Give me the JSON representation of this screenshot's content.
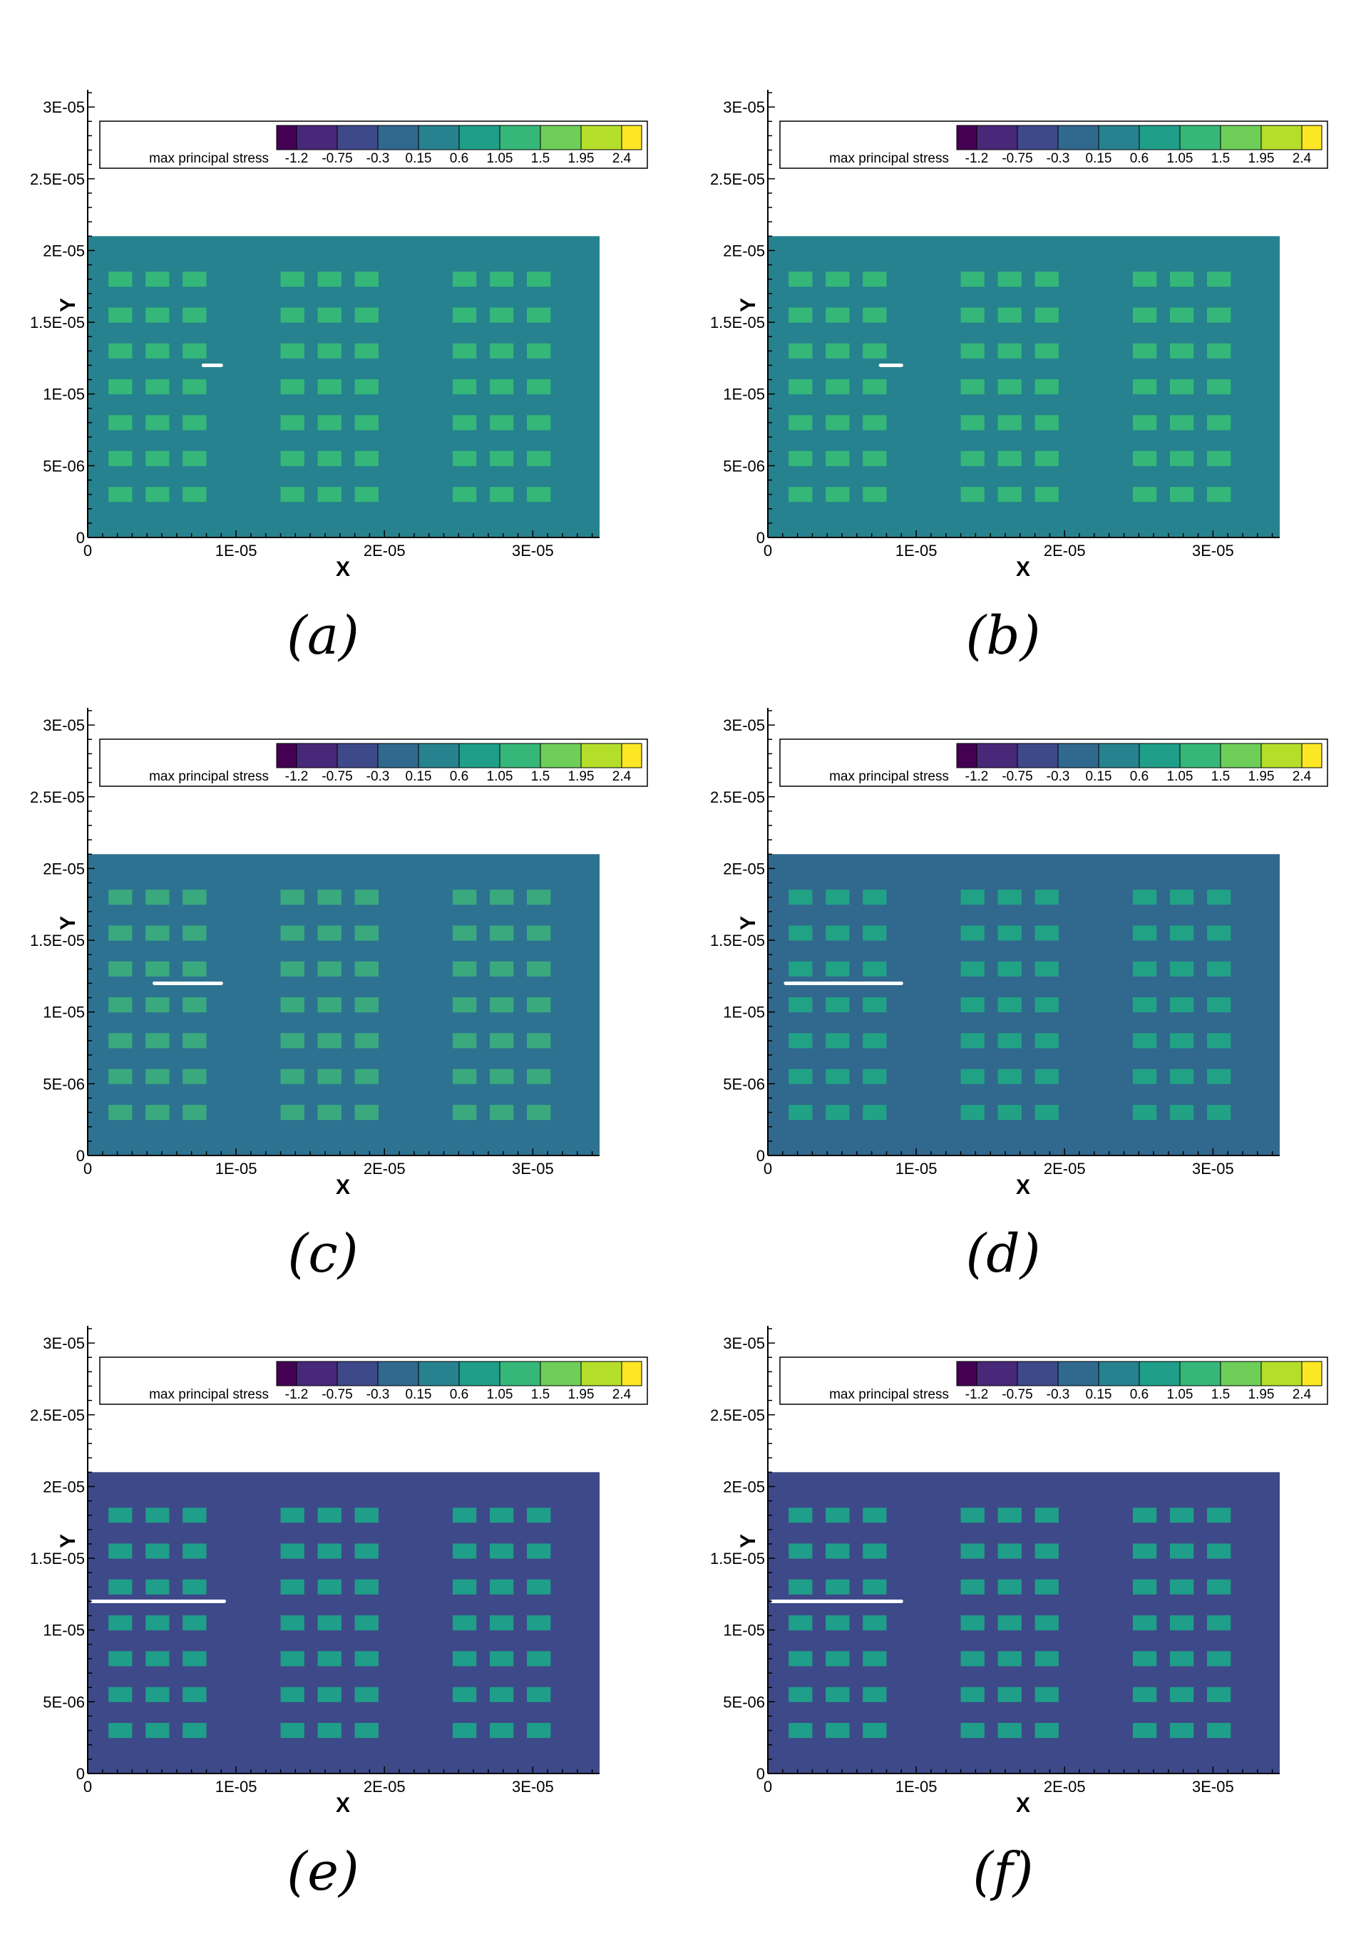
{
  "chart_data": [
    {
      "type": "heatmap",
      "caption": "(a)",
      "xlabel": "X",
      "ylabel": "Y",
      "xlim": [
        0,
        3.45e-05
      ],
      "ylim": [
        0,
        3.1e-05
      ],
      "x_ticks": [
        "0",
        "1E-05",
        "2E-05",
        "3E-05"
      ],
      "y_ticks": [
        "0",
        "5E-06",
        "1E-05",
        "1.5E-05",
        "2E-05",
        "2.5E-05",
        "3E-05"
      ],
      "domain_x": [
        0,
        3.45e-05
      ],
      "domain_y": [
        0,
        2.1e-05
      ],
      "legend_title": "max principal stress",
      "levels": [
        "-1.2",
        "-0.75",
        "-0.3",
        "0.15",
        "0.6",
        "1.05",
        "1.5",
        "1.95",
        "2.4"
      ],
      "crack": {
        "x_start": 7.8e-06,
        "x_end": 9e-06,
        "y": 1.2e-05
      }
    },
    {
      "type": "heatmap",
      "caption": "(b)",
      "xlabel": "X",
      "ylabel": "Y",
      "xlim": [
        0,
        3.45e-05
      ],
      "ylim": [
        0,
        3.1e-05
      ],
      "x_ticks": [
        "0",
        "1E-05",
        "2E-05",
        "3E-05"
      ],
      "y_ticks": [
        "0",
        "5E-06",
        "1E-05",
        "1.5E-05",
        "2E-05",
        "2.5E-05",
        "3E-05"
      ],
      "domain_x": [
        0,
        3.45e-05
      ],
      "domain_y": [
        0,
        2.1e-05
      ],
      "legend_title": "max principal stress",
      "levels": [
        "-1.2",
        "-0.75",
        "-0.3",
        "0.15",
        "0.6",
        "1.05",
        "1.5",
        "1.95",
        "2.4"
      ],
      "crack": {
        "x_start": 7.6e-06,
        "x_end": 9e-06,
        "y": 1.2e-05
      }
    },
    {
      "type": "heatmap",
      "caption": "(c)",
      "xlabel": "X",
      "ylabel": "Y",
      "xlim": [
        0,
        3.45e-05
      ],
      "ylim": [
        0,
        3.1e-05
      ],
      "x_ticks": [
        "0",
        "1E-05",
        "2E-05",
        "3E-05"
      ],
      "y_ticks": [
        "0",
        "5E-06",
        "1E-05",
        "1.5E-05",
        "2E-05",
        "2.5E-05",
        "3E-05"
      ],
      "domain_x": [
        0,
        3.45e-05
      ],
      "domain_y": [
        0,
        2.1e-05
      ],
      "legend_title": "max principal stress",
      "levels": [
        "-1.2",
        "-0.75",
        "-0.3",
        "0.15",
        "0.6",
        "1.05",
        "1.5",
        "1.95",
        "2.4"
      ],
      "crack": {
        "x_start": 4.5e-06,
        "x_end": 9e-06,
        "y": 1.2e-05
      }
    },
    {
      "type": "heatmap",
      "caption": "(d)",
      "xlabel": "X",
      "ylabel": "Y",
      "xlim": [
        0,
        3.45e-05
      ],
      "ylim": [
        0,
        3.1e-05
      ],
      "x_ticks": [
        "0",
        "1E-05",
        "2E-05",
        "3E-05"
      ],
      "y_ticks": [
        "0",
        "5E-06",
        "1E-05",
        "1.5E-05",
        "2E-05",
        "2.5E-05",
        "3E-05"
      ],
      "domain_x": [
        0,
        3.45e-05
      ],
      "domain_y": [
        0,
        2.1e-05
      ],
      "legend_title": "max principal stress",
      "levels": [
        "-1.2",
        "-0.75",
        "-0.3",
        "0.15",
        "0.6",
        "1.05",
        "1.5",
        "1.95",
        "2.4"
      ],
      "crack": {
        "x_start": 1.2e-06,
        "x_end": 9e-06,
        "y": 1.2e-05
      }
    },
    {
      "type": "heatmap",
      "caption": "(e)",
      "xlabel": "X",
      "ylabel": "Y",
      "xlim": [
        0,
        3.45e-05
      ],
      "ylim": [
        0,
        3.1e-05
      ],
      "x_ticks": [
        "0",
        "1E-05",
        "2E-05",
        "3E-05"
      ],
      "y_ticks": [
        "0",
        "5E-06",
        "1E-05",
        "1.5E-05",
        "2E-05",
        "2.5E-05",
        "3E-05"
      ],
      "domain_x": [
        0,
        3.45e-05
      ],
      "domain_y": [
        0,
        2.1e-05
      ],
      "legend_title": "max principal stress",
      "levels": [
        "-1.2",
        "-0.75",
        "-0.3",
        "0.15",
        "0.6",
        "1.05",
        "1.5",
        "1.95",
        "2.4"
      ],
      "crack": {
        "x_start": 3e-07,
        "x_end": 9.2e-06,
        "y": 1.2e-05
      }
    },
    {
      "type": "heatmap",
      "caption": "(f)",
      "xlabel": "X",
      "ylabel": "Y",
      "xlim": [
        0,
        3.45e-05
      ],
      "ylim": [
        0,
        3.1e-05
      ],
      "x_ticks": [
        "0",
        "1E-05",
        "2E-05",
        "3E-05"
      ],
      "y_ticks": [
        "0",
        "5E-06",
        "1E-05",
        "1.5E-05",
        "2E-05",
        "2.5E-05",
        "3E-05"
      ],
      "domain_x": [
        0,
        3.45e-05
      ],
      "domain_y": [
        0,
        2.1e-05
      ],
      "legend_title": "max principal stress",
      "levels": [
        "-1.2",
        "-0.75",
        "-0.3",
        "0.15",
        "0.6",
        "1.05",
        "1.5",
        "1.95",
        "2.4"
      ],
      "crack": {
        "x_start": 3e-07,
        "x_end": 9e-06,
        "y": 1.2e-05
      }
    }
  ],
  "colors": {
    "palette": [
      "#440154",
      "#482878",
      "#3e4989",
      "#31688e",
      "#26828e",
      "#1f9e89",
      "#35b779",
      "#6ece58",
      "#b5de2b",
      "#fde725"
    ],
    "field_a": "#26828e",
    "pad_a": "#35b779",
    "field_b": "#26828e",
    "pad_b": "#35b779",
    "field_c": "#2d7391",
    "pad_c": "#3aaa7e",
    "field_d": "#31688e",
    "pad_d": "#21a285",
    "field_e": "#3e4989",
    "pad_e": "#1f9e89",
    "field_f": "#3e4989",
    "pad_f": "#1f9e89",
    "crack": "#ffffff"
  }
}
